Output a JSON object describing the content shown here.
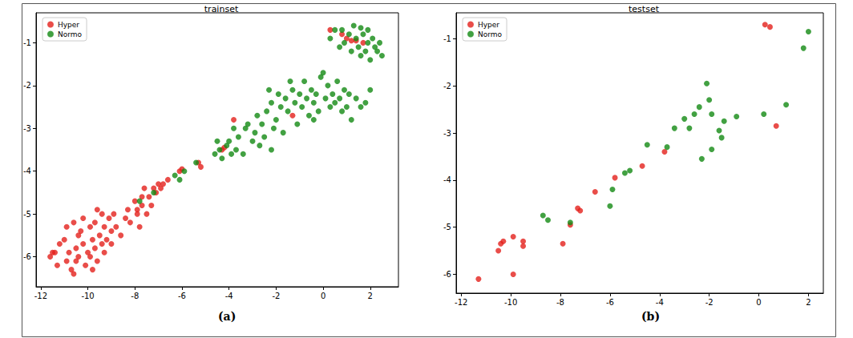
{
  "chart_data": [
    {
      "type": "scatter",
      "title": "trainset",
      "annotations": [
        "(a)"
      ],
      "legend": "upper left",
      "grid": false,
      "marker": "circle",
      "xlim": [
        -12.2,
        3.2
      ],
      "xticks": [
        -12,
        -10,
        -8,
        -6,
        -4,
        -2,
        0,
        2
      ],
      "ylim": [
        -6.7,
        -0.3
      ],
      "yticks": [
        -6,
        -5,
        -4,
        -3,
        -2,
        -1
      ],
      "series": [
        {
          "name": "Hyper",
          "color": "#e3201b",
          "values": [
            [
              -11.6,
              -6.0
            ],
            [
              -11.4,
              -5.9
            ],
            [
              -11.3,
              -6.2
            ],
            [
              -11.5,
              -5.9
            ],
            [
              -11.0,
              -5.6
            ],
            [
              -10.9,
              -6.1
            ],
            [
              -10.8,
              -5.9
            ],
            [
              -10.7,
              -6.3
            ],
            [
              -10.6,
              -6.4
            ],
            [
              -10.5,
              -5.8
            ],
            [
              -10.4,
              -6.0
            ],
            [
              -10.4,
              -5.5
            ],
            [
              -10.3,
              -5.4
            ],
            [
              -10.2,
              -5.7
            ],
            [
              -10.1,
              -6.2
            ],
            [
              -10.0,
              -5.9
            ],
            [
              -9.9,
              -6.0
            ],
            [
              -9.9,
              -5.3
            ],
            [
              -9.8,
              -5.6
            ],
            [
              -9.7,
              -5.2
            ],
            [
              -9.7,
              -5.8
            ],
            [
              -9.6,
              -6.1
            ],
            [
              -9.6,
              -4.9
            ],
            [
              -9.5,
              -5.5
            ],
            [
              -9.4,
              -5.7
            ],
            [
              -9.4,
              -5.0
            ],
            [
              -9.3,
              -5.3
            ],
            [
              -9.3,
              -5.9
            ],
            [
              -9.2,
              -5.6
            ],
            [
              -9.1,
              -5.1
            ],
            [
              -9.0,
              -5.4
            ],
            [
              -9.0,
              -5.7
            ],
            [
              -8.9,
              -5.0
            ],
            [
              -8.8,
              -5.3
            ],
            [
              -10.6,
              -5.2
            ],
            [
              -10.9,
              -5.3
            ],
            [
              -11.2,
              -5.7
            ],
            [
              -10.2,
              -5.1
            ],
            [
              -9.8,
              -6.3
            ],
            [
              -10.5,
              -6.1
            ],
            [
              -8.6,
              -5.5
            ],
            [
              -8.4,
              -5.1
            ],
            [
              -8.2,
              -5.2
            ],
            [
              -8.0,
              -4.7
            ],
            [
              -7.9,
              -4.9
            ],
            [
              -7.8,
              -5.3
            ],
            [
              -7.7,
              -4.6
            ],
            [
              -7.6,
              -4.4
            ],
            [
              -7.5,
              -5.0
            ],
            [
              -7.4,
              -4.6
            ],
            [
              -7.3,
              -4.8
            ],
            [
              -7.2,
              -4.4
            ],
            [
              -7.1,
              -4.5
            ],
            [
              -7.0,
              -4.3
            ],
            [
              -6.9,
              -4.4
            ],
            [
              -6.8,
              -4.3
            ],
            [
              -6.6,
              -4.2
            ],
            [
              -6.1,
              -4.0
            ],
            [
              -6.0,
              -3.95
            ],
            [
              -5.3,
              -3.8
            ],
            [
              -5.2,
              -3.9
            ],
            [
              -4.3,
              -3.5
            ],
            [
              -4.2,
              -3.45
            ],
            [
              -3.8,
              -2.8
            ],
            [
              -1.3,
              -2.7
            ],
            [
              0.3,
              -0.7
            ],
            [
              0.8,
              -0.8
            ],
            [
              1.0,
              -0.9
            ],
            [
              1.2,
              -0.95
            ],
            [
              1.4,
              -0.95
            ],
            [
              1.7,
              -1.0
            ],
            [
              -7.9,
              -5.0
            ],
            [
              -8.3,
              -4.9
            ],
            [
              -7.7,
              -4.8
            ]
          ]
        },
        {
          "name": "Normo",
          "color": "#138a13",
          "values": [
            [
              -7.8,
              -4.7
            ],
            [
              -7.2,
              -4.5
            ],
            [
              -6.3,
              -4.1
            ],
            [
              -6.1,
              -4.2
            ],
            [
              -5.9,
              -4.0
            ],
            [
              -5.4,
              -3.8
            ],
            [
              -4.6,
              -3.6
            ],
            [
              -4.5,
              -3.3
            ],
            [
              -4.4,
              -3.5
            ],
            [
              -4.3,
              -3.7
            ],
            [
              -4.1,
              -3.4
            ],
            [
              -4.0,
              -3.3
            ],
            [
              -3.9,
              -3.6
            ],
            [
              -3.7,
              -3.5
            ],
            [
              -3.6,
              -3.2
            ],
            [
              -3.4,
              -3.6
            ],
            [
              -3.3,
              -3.0
            ],
            [
              -3.2,
              -2.9
            ],
            [
              -3.0,
              -3.3
            ],
            [
              -2.9,
              -3.1
            ],
            [
              -2.8,
              -2.7
            ],
            [
              -2.7,
              -3.4
            ],
            [
              -2.6,
              -2.9
            ],
            [
              -2.5,
              -3.2
            ],
            [
              -2.4,
              -2.6
            ],
            [
              -2.3,
              -2.1
            ],
            [
              -2.2,
              -2.4
            ],
            [
              -2.1,
              -3.0
            ],
            [
              -2.0,
              -2.8
            ],
            [
              -1.9,
              -2.2
            ],
            [
              -1.8,
              -2.5
            ],
            [
              -1.7,
              -3.1
            ],
            [
              -1.6,
              -2.3
            ],
            [
              -1.5,
              -2.6
            ],
            [
              -1.4,
              -1.9
            ],
            [
              -1.3,
              -2.1
            ],
            [
              -1.2,
              -2.4
            ],
            [
              -1.1,
              -2.9
            ],
            [
              -1.0,
              -2.2
            ],
            [
              -0.9,
              -2.5
            ],
            [
              -0.8,
              -1.9
            ],
            [
              -0.7,
              -2.3
            ],
            [
              -0.6,
              -2.7
            ],
            [
              -0.5,
              -2.1
            ],
            [
              -0.4,
              -2.4
            ],
            [
              -0.3,
              -2.2
            ],
            [
              -0.2,
              -2.6
            ],
            [
              -0.1,
              -1.8
            ],
            [
              0.0,
              -1.7
            ],
            [
              0.1,
              -2.3
            ],
            [
              0.2,
              -2.0
            ],
            [
              0.3,
              -2.5
            ],
            [
              0.4,
              -2.2
            ],
            [
              0.5,
              -2.4
            ],
            [
              0.6,
              -1.9
            ],
            [
              0.7,
              -2.3
            ],
            [
              0.8,
              -2.6
            ],
            [
              0.9,
              -2.1
            ],
            [
              1.0,
              -2.5
            ],
            [
              1.1,
              -2.2
            ],
            [
              1.2,
              -2.8
            ],
            [
              1.4,
              -2.3
            ],
            [
              1.6,
              -2.5
            ],
            [
              1.8,
              -2.4
            ],
            [
              2.0,
              -2.1
            ],
            [
              -2.2,
              -3.5
            ],
            [
              -0.4,
              -2.8
            ],
            [
              -3.8,
              -3.0
            ],
            [
              0.3,
              -0.9
            ],
            [
              0.5,
              -0.7
            ],
            [
              0.7,
              -1.1
            ],
            [
              0.8,
              -0.7
            ],
            [
              0.9,
              -1.0
            ],
            [
              1.1,
              -0.8
            ],
            [
              1.2,
              -1.2
            ],
            [
              1.3,
              -0.6
            ],
            [
              1.4,
              -0.9
            ],
            [
              1.5,
              -1.1
            ],
            [
              1.6,
              -0.65
            ],
            [
              1.7,
              -0.8
            ],
            [
              1.8,
              -1.2
            ],
            [
              1.9,
              -1.0
            ],
            [
              2.0,
              -1.4
            ],
            [
              2.1,
              -0.9
            ],
            [
              2.2,
              -1.1
            ],
            [
              2.3,
              -1.2
            ],
            [
              2.4,
              -1.0
            ],
            [
              2.5,
              -1.3
            ],
            [
              1.9,
              -0.7
            ],
            [
              1.6,
              -1.3
            ]
          ]
        }
      ]
    },
    {
      "type": "scatter",
      "title": "testset",
      "annotations": [
        "(b)"
      ],
      "legend": "upper left",
      "grid": false,
      "marker": "circle",
      "xlim": [
        -12.2,
        2.6
      ],
      "xticks": [
        -12,
        -10,
        -8,
        -6,
        -4,
        -2,
        0,
        2
      ],
      "ylim": [
        -6.4,
        -0.45
      ],
      "yticks": [
        -6,
        -5,
        -4,
        -3,
        -2,
        -1
      ],
      "series": [
        {
          "name": "Hyper",
          "color": "#e3201b",
          "values": [
            [
              -11.3,
              -6.1
            ],
            [
              -10.5,
              -5.5
            ],
            [
              -10.4,
              -5.35
            ],
            [
              -10.3,
              -5.3
            ],
            [
              -9.9,
              -6.0
            ],
            [
              -9.9,
              -5.2
            ],
            [
              -9.5,
              -5.4
            ],
            [
              -9.5,
              -5.3
            ],
            [
              -7.9,
              -5.35
            ],
            [
              -7.6,
              -4.95
            ],
            [
              -7.3,
              -4.6
            ],
            [
              -7.2,
              -4.65
            ],
            [
              -6.6,
              -4.25
            ],
            [
              -5.8,
              -3.95
            ],
            [
              -4.7,
              -3.7
            ],
            [
              -3.8,
              -3.4
            ],
            [
              0.25,
              -0.7
            ],
            [
              0.45,
              -0.75
            ],
            [
              0.7,
              -2.85
            ]
          ]
        },
        {
          "name": "Normo",
          "color": "#138a13",
          "values": [
            [
              -8.7,
              -4.75
            ],
            [
              -8.5,
              -4.85
            ],
            [
              -7.6,
              -4.9
            ],
            [
              -6.0,
              -4.55
            ],
            [
              -5.9,
              -4.2
            ],
            [
              -5.4,
              -3.85
            ],
            [
              -5.2,
              -3.8
            ],
            [
              -4.5,
              -3.25
            ],
            [
              -3.7,
              -3.3
            ],
            [
              -3.4,
              -2.9
            ],
            [
              -3.0,
              -2.7
            ],
            [
              -2.8,
              -2.9
            ],
            [
              -2.6,
              -2.6
            ],
            [
              -2.4,
              -2.45
            ],
            [
              -2.3,
              -3.55
            ],
            [
              -2.1,
              -1.95
            ],
            [
              -2.0,
              -2.3
            ],
            [
              -1.9,
              -2.6
            ],
            [
              -1.9,
              -3.35
            ],
            [
              -1.6,
              -2.95
            ],
            [
              -1.5,
              -3.1
            ],
            [
              -1.4,
              -2.75
            ],
            [
              -0.9,
              -2.65
            ],
            [
              0.2,
              -2.6
            ],
            [
              1.1,
              -2.4
            ],
            [
              1.8,
              -1.2
            ],
            [
              2.0,
              -0.85
            ]
          ]
        }
      ]
    }
  ]
}
